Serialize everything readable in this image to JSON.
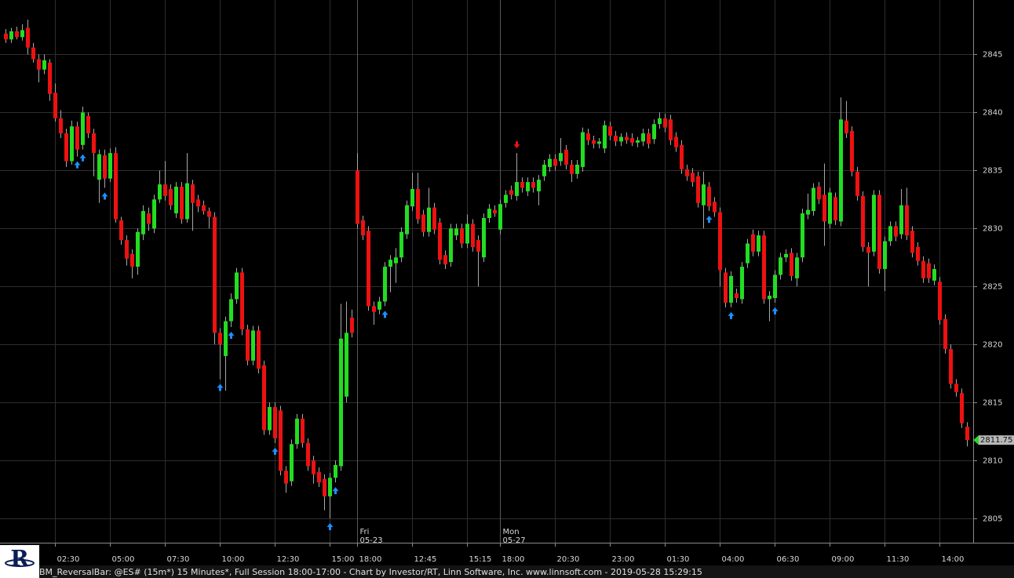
{
  "chart_data": {
    "type": "candlestick",
    "up_color": "#22dd22",
    "down_color": "#ee1111",
    "wick_color": "#a8a8a8",
    "signal_colors": {
      "up": "#1e8fff",
      "down": "#ee1111"
    },
    "ylim": [
      2802.9,
      2849.7
    ],
    "yticks": [
      2805,
      2810,
      2815,
      2820,
      2825,
      2830,
      2835,
      2840,
      2845
    ],
    "grid": true,
    "last_price": 2811.75,
    "categories": [
      null,
      null,
      null,
      null,
      null,
      null,
      null,
      null,
      null,
      "02:30",
      null,
      null,
      null,
      null,
      null,
      null,
      null,
      null,
      null,
      "05:00",
      null,
      null,
      null,
      null,
      null,
      null,
      null,
      null,
      null,
      "07:30",
      null,
      null,
      null,
      null,
      null,
      null,
      null,
      null,
      null,
      "10:00",
      null,
      null,
      null,
      null,
      null,
      null,
      null,
      null,
      null,
      "12:30",
      null,
      null,
      null,
      null,
      null,
      null,
      null,
      null,
      null,
      "15:00",
      null,
      null,
      null,
      null,
      "18:00",
      null,
      null,
      null,
      null,
      null,
      null,
      null,
      null,
      null,
      "12:45",
      null,
      null,
      null,
      null,
      null,
      null,
      null,
      null,
      null,
      "15:15",
      null,
      null,
      null,
      null,
      null,
      "18:00",
      null,
      null,
      null,
      null,
      null,
      null,
      null,
      null,
      null,
      "20:30",
      null,
      null,
      null,
      null,
      null,
      null,
      null,
      null,
      null,
      "23:00",
      null,
      null,
      null,
      null,
      null,
      null,
      null,
      null,
      null,
      "01:30",
      null,
      null,
      null,
      null,
      null,
      null,
      null,
      null,
      null,
      "04:00",
      null,
      null,
      null,
      null,
      null,
      null,
      null,
      null,
      null,
      "06:30",
      null,
      null,
      null,
      null,
      null,
      null,
      null,
      null,
      null,
      "09:00",
      null,
      null,
      null,
      null,
      null,
      null,
      null,
      null,
      null,
      "11:30",
      null,
      null,
      null,
      null,
      null,
      null,
      null,
      null,
      null,
      "14:00",
      null,
      null,
      null,
      null,
      null
    ],
    "day_labels": [
      null,
      null,
      null,
      null,
      null,
      null,
      null,
      null,
      null,
      null,
      null,
      null,
      null,
      null,
      null,
      null,
      null,
      null,
      null,
      null,
      null,
      null,
      null,
      null,
      null,
      null,
      null,
      null,
      null,
      null,
      null,
      null,
      null,
      null,
      null,
      null,
      null,
      null,
      null,
      null,
      null,
      null,
      null,
      null,
      null,
      null,
      null,
      null,
      null,
      null,
      null,
      null,
      null,
      null,
      null,
      null,
      null,
      null,
      null,
      null,
      null,
      null,
      null,
      null,
      {
        "day": "Fri",
        "date": "05-23"
      },
      null,
      null,
      null,
      null,
      null,
      null,
      null,
      null,
      null,
      null,
      null,
      null,
      null,
      null,
      null,
      null,
      null,
      null,
      null,
      null,
      null,
      null,
      null,
      null,
      null,
      {
        "day": "Mon",
        "date": "05-27"
      },
      null,
      null,
      null,
      null,
      null,
      null,
      null,
      null,
      null,
      null,
      null,
      null,
      null,
      null,
      null,
      null,
      null,
      null,
      null,
      null,
      null,
      null,
      null,
      null,
      null,
      null,
      null,
      null,
      null,
      null,
      null,
      null,
      null,
      null,
      null,
      null,
      null,
      null,
      null,
      null,
      null,
      null,
      null,
      null,
      null,
      null,
      null,
      null,
      null,
      null,
      null,
      null,
      null,
      null,
      null,
      null,
      null,
      null,
      null,
      null,
      null,
      null,
      null,
      null,
      null,
      null,
      null,
      null,
      null,
      null,
      null,
      null,
      null,
      null,
      null,
      null,
      null,
      null,
      null,
      null,
      null,
      null,
      null,
      null,
      null
    ],
    "signals": [
      null,
      null,
      null,
      null,
      null,
      null,
      null,
      null,
      null,
      null,
      null,
      null,
      null,
      "up",
      "up",
      null,
      null,
      null,
      "up",
      null,
      null,
      null,
      null,
      null,
      null,
      null,
      null,
      null,
      null,
      null,
      null,
      null,
      null,
      null,
      null,
      null,
      null,
      null,
      null,
      "up",
      null,
      "up",
      null,
      null,
      null,
      null,
      null,
      null,
      null,
      "up",
      null,
      null,
      null,
      null,
      null,
      null,
      null,
      null,
      null,
      "up",
      "up",
      null,
      null,
      null,
      null,
      null,
      null,
      null,
      null,
      "up",
      null,
      null,
      null,
      null,
      null,
      null,
      null,
      null,
      null,
      null,
      null,
      null,
      null,
      null,
      null,
      null,
      null,
      null,
      null,
      null,
      null,
      null,
      null,
      "down",
      null,
      null,
      null,
      null,
      null,
      null,
      null,
      null,
      null,
      null,
      null,
      null,
      null,
      null,
      null,
      null,
      null,
      null,
      null,
      null,
      null,
      null,
      null,
      null,
      null,
      null,
      null,
      null,
      null,
      null,
      null,
      null,
      null,
      null,
      "up",
      null,
      null,
      null,
      "up",
      null,
      null,
      null,
      null,
      null,
      null,
      null,
      "up",
      null,
      null,
      null,
      null,
      null,
      null,
      null,
      null,
      null,
      null,
      null,
      null,
      null,
      null,
      null,
      null,
      null,
      null,
      null,
      null,
      null,
      null,
      null,
      null,
      null,
      null,
      null,
      null,
      null,
      null,
      null,
      null,
      null,
      null,
      null
    ],
    "open": [
      2846.8,
      2846.3,
      2847.0,
      2846.5,
      2847.3,
      2845.6,
      2844.6,
      2843.7,
      2844.3,
      2841.7,
      2839.5,
      2838.2,
      2835.8,
      2838.8,
      2837.2,
      2839.7,
      2838.2,
      2834.2,
      2836.3,
      2834.3,
      2836.5,
      2830.7,
      2829.0,
      2827.8,
      2826.7,
      2829.5,
      2831.3,
      2830.0,
      2832.5,
      2833.8,
      2833.4,
      2831.3,
      2833.6,
      2830.8,
      2833.8,
      2832.5,
      2832.0,
      2831.5,
      2831.0,
      2821.0,
      2819.0,
      2822.0,
      2823.9,
      2826.2,
      2821.3,
      2818.6,
      2821.2,
      2818.2,
      2812.6,
      2814.6,
      2814.3,
      2809.1,
      2808.2,
      2811.4,
      2813.6,
      2811.5,
      2810.0,
      2809.0,
      2808.4,
      2806.9,
      2808.5,
      2809.5,
      2815.5,
      2822.3,
      2835.0,
      2830.7,
      2829.8,
      2823.3,
      2823.0,
      2823.7,
      2826.7,
      2827.0,
      2827.5,
      2829.5,
      2831.9,
      2833.4,
      2831.2,
      2829.7,
      2831.8,
      2830.5,
      2827.7,
      2827.1,
      2829.4,
      2830.0,
      2828.7,
      2830.4,
      2829.0,
      2827.5,
      2830.9,
      2831.6,
      2829.9,
      2832.2,
      2833.3,
      2832.8,
      2834.0,
      2833.2,
      2834.0,
      2833.2,
      2834.5,
      2835.3,
      2836.0,
      2835.8,
      2836.8,
      2835.5,
      2834.7,
      2835.3,
      2838.2,
      2837.6,
      2837.3,
      2836.9,
      2838.8,
      2838.0,
      2837.5,
      2837.9,
      2837.8,
      2837.4,
      2837.5,
      2838.2,
      2837.7,
      2839.0,
      2839.5,
      2839.4,
      2837.9,
      2837.2,
      2835.1,
      2834.8,
      2834.5,
      2832.0,
      2833.6,
      2832.3,
      2831.4,
      2826.2,
      2823.6,
      2824.4,
      2823.9,
      2827.0,
      2829.5,
      2828.0,
      2829.4,
      2823.9,
      2824.0,
      2826.0,
      2827.5,
      2827.9,
      2825.7,
      2827.5,
      2831.2,
      2831.5,
      2833.6,
      2832.9,
      2830.4,
      2832.7,
      2830.6,
      2839.3,
      2838.4,
      2834.9,
      2832.8,
      2828.4,
      2828.0,
      2832.9,
      2826.5,
      2828.9,
      2830.2,
      2829.5,
      2832.0,
      2829.8,
      2828.4,
      2827.2,
      2827.0,
      2825.5,
      2825.4,
      2822.2,
      2819.6,
      2816.6,
      2815.8,
      2812.9
    ],
    "high": [
      2847.2,
      2847.3,
      2847.4,
      2847.6,
      2848.0,
      2846.0,
      2845.0,
      2845.0,
      2844.6,
      2842.5,
      2840.2,
      2838.6,
      2839.3,
      2839.2,
      2840.5,
      2840.0,
      2838.6,
      2836.8,
      2836.8,
      2836.9,
      2837.0,
      2831.0,
      2829.4,
      2828.2,
      2830.0,
      2832.0,
      2831.8,
      2832.9,
      2835.0,
      2835.8,
      2833.8,
      2834.0,
      2834.0,
      2836.5,
      2834.2,
      2832.9,
      2832.4,
      2831.8,
      2831.4,
      2821.4,
      2822.4,
      2824.4,
      2826.6,
      2826.6,
      2821.7,
      2821.6,
      2821.6,
      2818.6,
      2815.0,
      2815.0,
      2814.7,
      2809.5,
      2811.8,
      2814.0,
      2814.0,
      2811.9,
      2810.4,
      2809.4,
      2808.8,
      2808.9,
      2810.0,
      2823.5,
      2823.7,
      2823.0,
      2836.5,
      2831.1,
      2830.2,
      2823.7,
      2824.1,
      2827.1,
      2827.7,
      2828.3,
      2830.1,
      2832.4,
      2834.8,
      2834.8,
      2831.6,
      2833.5,
      2832.2,
      2830.9,
      2828.1,
      2830.4,
      2830.4,
      2830.4,
      2831.2,
      2830.8,
      2829.4,
      2831.3,
      2832.1,
      2832.0,
      2832.5,
      2833.3,
      2833.7,
      2836.5,
      2834.4,
      2834.4,
      2834.4,
      2834.6,
      2835.9,
      2836.4,
      2836.4,
      2837.8,
      2837.2,
      2835.9,
      2835.9,
      2838.7,
      2838.6,
      2838.0,
      2837.8,
      2839.3,
      2839.2,
      2838.4,
      2838.2,
      2838.3,
      2838.2,
      2837.9,
      2838.6,
      2838.6,
      2839.4,
      2840.0,
      2839.9,
      2839.8,
      2838.3,
      2837.6,
      2835.5,
      2835.2,
      2834.9,
      2834.9,
      2834.0,
      2832.7,
      2831.8,
      2826.6,
      2826.3,
      2824.8,
      2827.1,
      2829.1,
      2829.9,
      2829.8,
      2829.8,
      2824.6,
      2826.4,
      2827.9,
      2828.2,
      2828.3,
      2827.9,
      2831.7,
      2833.0,
      2833.9,
      2834.0,
      2835.6,
      2833.5,
      2833.1,
      2841.3,
      2841.0,
      2838.8,
      2835.3,
      2833.2,
      2828.8,
      2833.3,
      2833.3,
      2829.3,
      2830.6,
      2830.6,
      2833.4,
      2833.5,
      2830.2,
      2828.8,
      2827.6,
      2827.4,
      2826.9,
      2825.8,
      2822.6,
      2820.0,
      2817.0,
      2816.2,
      2813.3
    ],
    "low": [
      2846.0,
      2846.0,
      2846.3,
      2846.2,
      2845.0,
      2844.3,
      2842.6,
      2843.3,
      2841.0,
      2839.2,
      2837.8,
      2835.3,
      2835.5,
      2836.2,
      2836.8,
      2837.8,
      2834.5,
      2832.2,
      2833.5,
      2834.0,
      2830.5,
      2828.6,
      2826.8,
      2825.7,
      2826.0,
      2829.0,
      2829.8,
      2829.6,
      2832.2,
      2832.4,
      2831.6,
      2830.9,
      2830.4,
      2830.5,
      2829.8,
      2831.4,
      2831.2,
      2830.0,
      2820.0,
      2817.0,
      2816.0,
      2821.5,
      2823.5,
      2820.8,
      2818.2,
      2818.2,
      2817.5,
      2812.2,
      2812.2,
      2811.5,
      2808.7,
      2807.2,
      2807.8,
      2811.0,
      2811.1,
      2809.1,
      2808.0,
      2807.7,
      2805.7,
      2805.0,
      2808.1,
      2809.1,
      2815.0,
      2820.6,
      2830.0,
      2829.0,
      2822.9,
      2821.7,
      2822.6,
      2823.3,
      2824.5,
      2825.3,
      2827.1,
      2829.1,
      2831.5,
      2830.4,
      2829.3,
      2829.3,
      2829.5,
      2826.9,
      2826.5,
      2826.7,
      2829.0,
      2828.3,
      2828.3,
      2828.0,
      2825.0,
      2827.1,
      2830.5,
      2831.0,
      2829.5,
      2831.8,
      2832.5,
      2832.4,
      2833.1,
      2832.8,
      2833.1,
      2832.0,
      2834.1,
      2834.9,
      2835.0,
      2835.4,
      2835.1,
      2834.0,
      2834.3,
      2834.9,
      2837.2,
      2836.9,
      2836.9,
      2836.5,
      2837.6,
      2837.1,
      2837.1,
      2837.3,
      2837.1,
      2837.0,
      2837.1,
      2836.9,
      2837.3,
      2838.6,
      2838.3,
      2837.2,
      2836.6,
      2834.7,
      2834.1,
      2833.6,
      2831.8,
      2830.0,
      2831.5,
      2831.0,
      2825.0,
      2823.2,
      2823.2,
      2823.6,
      2823.5,
      2826.6,
      2827.6,
      2827.6,
      2823.5,
      2822.0,
      2823.6,
      2825.6,
      2827.1,
      2825.5,
      2825.0,
      2827.1,
      2830.8,
      2831.1,
      2832.1,
      2828.5,
      2830.0,
      2830.3,
      2830.2,
      2837.8,
      2834.5,
      2832.4,
      2828.0,
      2825.0,
      2827.6,
      2826.1,
      2824.6,
      2828.5,
      2828.9,
      2829.1,
      2829.0,
      2827.5,
      2826.8,
      2825.3,
      2825.3,
      2825.1,
      2821.7,
      2819.2,
      2816.2,
      2815.5,
      2812.8,
      2811.2
    ],
    "close": [
      2846.3,
      2847.0,
      2846.5,
      2847.1,
      2845.6,
      2844.6,
      2843.7,
      2844.5,
      2841.6,
      2839.5,
      2838.2,
      2835.8,
      2838.8,
      2836.8,
      2840.0,
      2838.2,
      2836.5,
      2836.4,
      2834.3,
      2836.5,
      2830.8,
      2829.0,
      2827.4,
      2826.7,
      2829.7,
      2831.5,
      2830.4,
      2832.5,
      2833.8,
      2832.8,
      2832.0,
      2833.6,
      2830.8,
      2833.9,
      2832.2,
      2831.9,
      2831.5,
      2831.0,
      2821.0,
      2820.0,
      2822.0,
      2823.9,
      2826.2,
      2821.3,
      2818.6,
      2821.2,
      2817.9,
      2812.6,
      2814.6,
      2811.9,
      2809.1,
      2808.0,
      2811.4,
      2813.6,
      2811.5,
      2809.5,
      2808.8,
      2808.1,
      2806.9,
      2808.5,
      2809.6,
      2820.5,
      2821.0,
      2821.0,
      2830.4,
      2829.4,
      2823.3,
      2822.8,
      2823.7,
      2826.7,
      2827.3,
      2827.5,
      2829.7,
      2832.0,
      2833.4,
      2830.8,
      2829.7,
      2831.8,
      2829.9,
      2827.3,
      2826.9,
      2830.0,
      2830.0,
      2828.7,
      2830.4,
      2828.4,
      2828.0,
      2830.9,
      2831.7,
      2831.3,
      2832.1,
      2832.9,
      2832.9,
      2834.0,
      2833.5,
      2834.0,
      2833.5,
      2834.2,
      2835.5,
      2836.0,
      2835.4,
      2836.5,
      2835.5,
      2834.7,
      2835.5,
      2838.3,
      2837.6,
      2837.3,
      2837.5,
      2838.9,
      2838.0,
      2837.5,
      2837.9,
      2837.6,
      2837.4,
      2837.6,
      2838.2,
      2837.3,
      2839.0,
      2839.5,
      2838.7,
      2837.6,
      2837.0,
      2835.1,
      2834.5,
      2834.0,
      2832.2,
      2833.8,
      2831.9,
      2831.4,
      2826.4,
      2823.6,
      2825.9,
      2824.0,
      2826.7,
      2828.7,
      2828.0,
      2829.4,
      2823.9,
      2824.2,
      2826.0,
      2827.5,
      2827.8,
      2825.9,
      2827.5,
      2831.3,
      2831.6,
      2833.5,
      2832.5,
      2830.6,
      2833.1,
      2830.7,
      2839.4,
      2838.2,
      2834.9,
      2832.8,
      2828.4,
      2827.9,
      2832.9,
      2826.5,
      2828.9,
      2830.2,
      2829.3,
      2832.0,
      2829.4,
      2827.9,
      2827.2,
      2825.7,
      2825.7,
      2826.5,
      2822.1,
      2819.6,
      2816.6,
      2815.9,
      2813.2,
      2811.75
    ]
  },
  "status_bar": {
    "logo": "R",
    "text": "BM_ReversalBar: @ES# (15m*) 15 Minutes*, Full Session 18:00-17:00 - Chart by Investor/RT, Linn Software, Inc. www.linnsoft.com - 2019-05-28 15:29:15"
  }
}
